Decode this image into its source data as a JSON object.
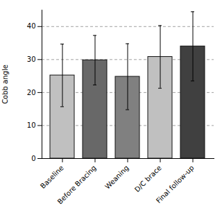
{
  "chart_data": {
    "type": "bar",
    "categories": [
      "Baseline",
      "Before Bracing",
      "Weaning",
      "D/C brace",
      "Final follow-up"
    ],
    "values": [
      25.2,
      29.8,
      24.8,
      30.8,
      34.0
    ],
    "errors_upper": [
      9.5,
      7.5,
      10.0,
      9.5,
      10.5
    ],
    "errors_lower": [
      9.5,
      7.5,
      10.0,
      9.5,
      10.5
    ],
    "colors": [
      "#c0c0c0",
      "#686868",
      "#808080",
      "#c0c0c0",
      "#404040"
    ],
    "ylabel": "Cobb angle",
    "ylim": [
      0,
      45
    ],
    "yticks": [
      0,
      10,
      20,
      30,
      40
    ],
    "grid": true
  }
}
